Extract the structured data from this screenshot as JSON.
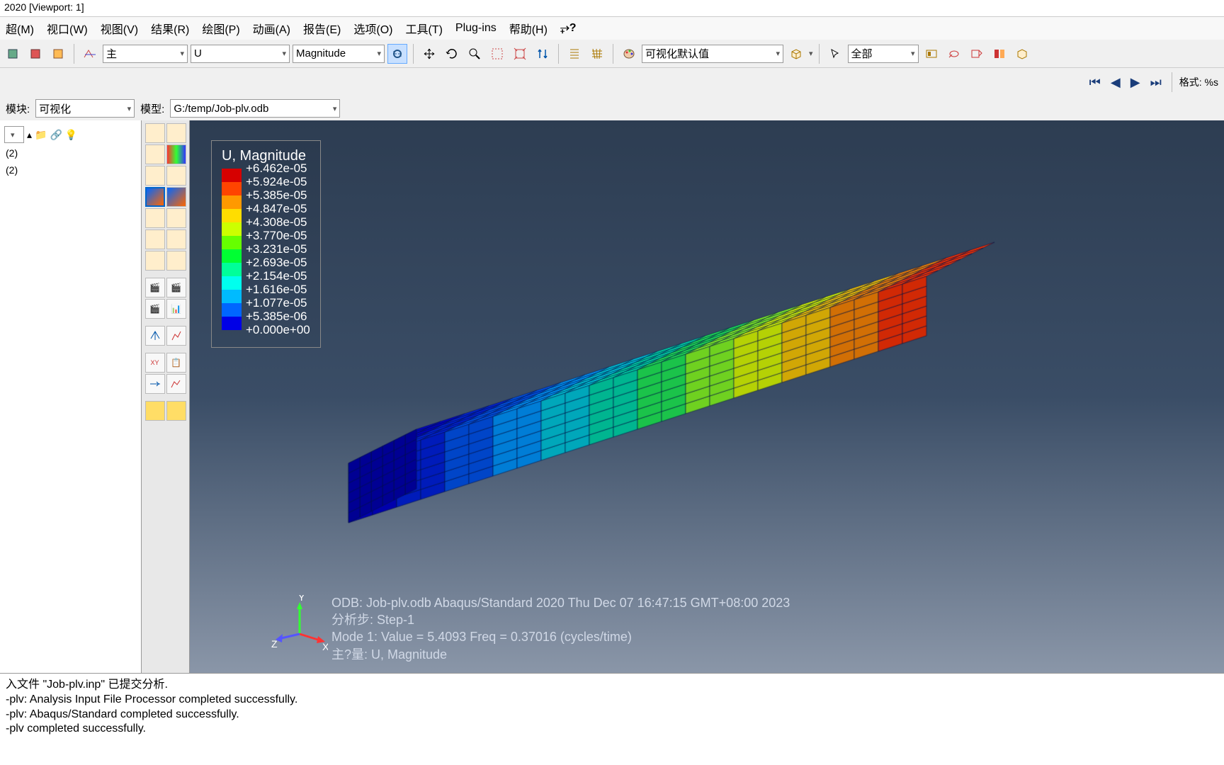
{
  "window": {
    "title": "2020 [Viewport: 1]"
  },
  "menus": [
    "超(M)",
    "视口(W)",
    "视图(V)",
    "结果(R)",
    "绘图(P)",
    "动画(A)",
    "报告(E)",
    "选项(O)",
    "工具(T)",
    "Plug-ins",
    "帮助(H)"
  ],
  "toolbar": {
    "field1": "主",
    "field2": "U",
    "field3": "Magnitude",
    "display_mode": "可视化默认值",
    "selection": "全部",
    "format_label": "格式: %s"
  },
  "module_bar": {
    "module_label": "模块:",
    "module_value": "可视化",
    "model_label": "模型:",
    "model_value": "G:/temp/Job-plv.odb"
  },
  "tree": {
    "item1": "(2)",
    "item2": "(2)"
  },
  "legend": {
    "title": "U, Magnitude",
    "colors": [
      "#d60000",
      "#ff4400",
      "#ff9900",
      "#ffdd00",
      "#ccff00",
      "#66ff00",
      "#00ff33",
      "#00ff99",
      "#00ffee",
      "#00bbff",
      "#0066ff",
      "#0000e6"
    ],
    "labels": [
      "+6.462e-05",
      "+5.924e-05",
      "+5.385e-05",
      "+4.847e-05",
      "+4.308e-05",
      "+3.770e-05",
      "+3.231e-05",
      "+2.693e-05",
      "+2.154e-05",
      "+1.616e-05",
      "+1.077e-05",
      "+5.385e-06",
      "+0.000e+00"
    ]
  },
  "viewport_info": {
    "line1": "ODB: Job-plv.odb    Abaqus/Standard 2020    Thu Dec 07 16:47:15 GMT+08:00 2023",
    "line2": "分析步: Step-1",
    "line3": "Mode      1: Value =   5.4093     Freq =  0.37016    (cycles/time)",
    "line4": "主?量: U, Magnitude"
  },
  "triad": {
    "x": "X",
    "y": "Y",
    "z": "Z"
  },
  "console": {
    "l1": "入文件 \"Job-plv.inp\" 已提交分析.",
    "l2": "-plv: Analysis Input File Processor completed successfully.",
    "l3": "-plv: Abaqus/Standard completed successfully.",
    "l4": "-plv completed successfully."
  },
  "beam": {
    "band_colors": [
      "#0000cc",
      "#0022dd",
      "#0055ee",
      "#0099ff",
      "#00ccdd",
      "#00ddaa",
      "#22ee55",
      "#88ff22",
      "#ddff00",
      "#ffcc00",
      "#ff8800",
      "#ff3300"
    ],
    "grid_color": "#001144"
  }
}
